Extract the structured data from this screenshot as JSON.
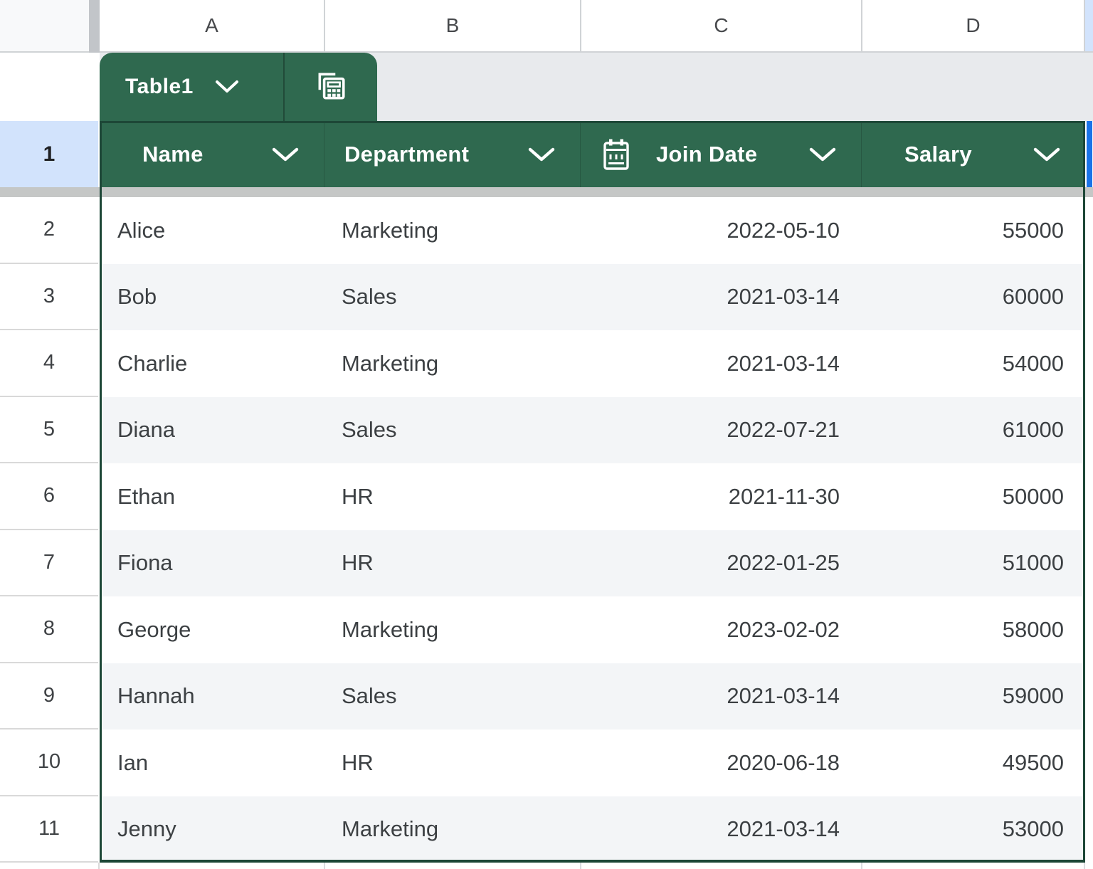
{
  "column_strip": {
    "letters": [
      "A",
      "B",
      "C",
      "D"
    ]
  },
  "table_tab": {
    "label": "Table1"
  },
  "header_row": {
    "row_number": "1",
    "columns": [
      {
        "label": "Name",
        "calendar_icon": false
      },
      {
        "label": "Department",
        "calendar_icon": false
      },
      {
        "label": "Join Date",
        "calendar_icon": true
      },
      {
        "label": "Salary",
        "calendar_icon": false
      }
    ]
  },
  "rows": [
    {
      "number": "2",
      "cells": [
        "Alice",
        "Marketing",
        "2022-05-10",
        "55000"
      ]
    },
    {
      "number": "3",
      "cells": [
        "Bob",
        "Sales",
        "2021-03-14",
        "60000"
      ]
    },
    {
      "number": "4",
      "cells": [
        "Charlie",
        "Marketing",
        "2021-03-14",
        "54000"
      ]
    },
    {
      "number": "5",
      "cells": [
        "Diana",
        "Sales",
        "2022-07-21",
        "61000"
      ]
    },
    {
      "number": "6",
      "cells": [
        "Ethan",
        "HR",
        "2021-11-30",
        "50000"
      ]
    },
    {
      "number": "7",
      "cells": [
        "Fiona",
        "HR",
        "2022-01-25",
        "51000"
      ]
    },
    {
      "number": "8",
      "cells": [
        "George",
        "Marketing",
        "2023-02-02",
        "58000"
      ]
    },
    {
      "number": "9",
      "cells": [
        "Hannah",
        "Sales",
        "2021-03-14",
        "59000"
      ]
    },
    {
      "number": "10",
      "cells": [
        "Ian",
        "HR",
        "2020-06-18",
        "49500"
      ]
    },
    {
      "number": "11",
      "cells": [
        "Jenny",
        "Marketing",
        "2021-03-14",
        "53000"
      ]
    }
  ],
  "colors": {
    "table_green": "#2f694f",
    "table_border_green": "#1d4737",
    "selection_blue": "#1a73e8",
    "selected_header_blue": "#d2e3fc",
    "band_gray": "#f3f5f7",
    "freeze_bar_gray": "#c5c7c6",
    "tab_band_gray": "#e8eaed"
  }
}
